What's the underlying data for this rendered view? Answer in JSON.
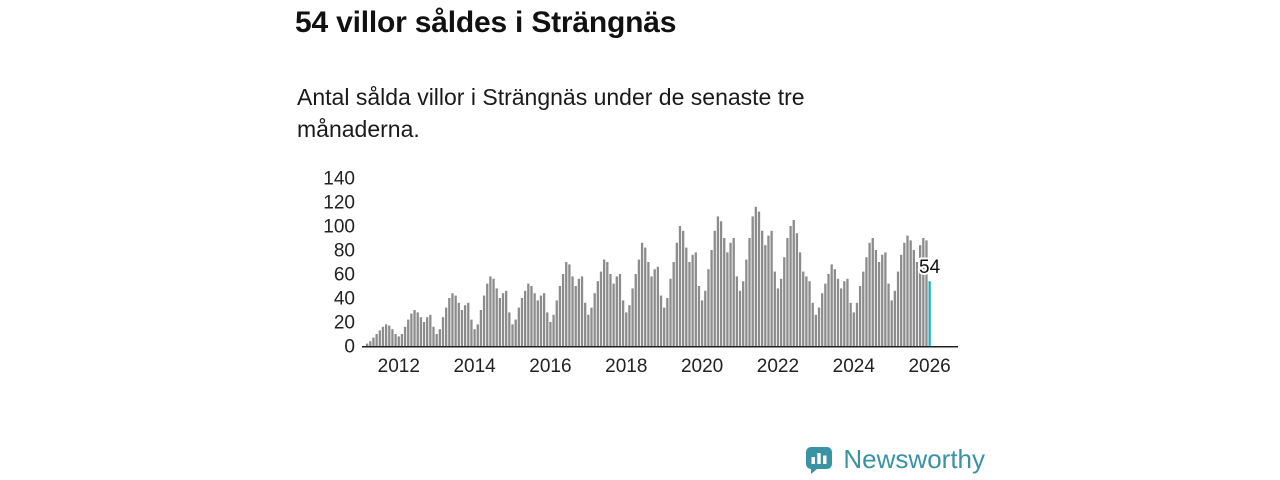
{
  "page": {
    "title": "54 villor såldes i Strängnäs",
    "subtitle": "Antal sålda villor i Strängnäs under de senaste tre månaderna."
  },
  "chart_data": {
    "type": "bar",
    "title": "54 villor såldes i Strängnäs",
    "subtitle": "Antal sålda villor i Strängnäs under de senaste tre månaderna.",
    "ylabel": "",
    "xlabel": "",
    "ylim": [
      0,
      140
    ],
    "y_ticks": [
      0,
      20,
      40,
      60,
      80,
      100,
      120,
      140
    ],
    "grid": false,
    "legend": false,
    "bar_color": "#8c8c8c",
    "highlight_color": "#1fb3bd",
    "highlight_label": "54",
    "x_ticks": [
      {
        "label": "2012",
        "index": 10
      },
      {
        "label": "2014",
        "index": 34
      },
      {
        "label": "2016",
        "index": 58
      },
      {
        "label": "2018",
        "index": 82
      },
      {
        "label": "2020",
        "index": 106
      },
      {
        "label": "2022",
        "index": 130
      },
      {
        "label": "2024",
        "index": 154
      },
      {
        "label": "2026",
        "index": 178
      }
    ],
    "values": [
      2,
      4,
      7,
      10,
      13,
      16,
      18,
      17,
      14,
      10,
      8,
      10,
      16,
      22,
      27,
      30,
      28,
      24,
      20,
      24,
      26,
      16,
      10,
      14,
      24,
      32,
      40,
      44,
      42,
      36,
      30,
      34,
      36,
      22,
      14,
      18,
      30,
      42,
      52,
      58,
      56,
      48,
      40,
      44,
      46,
      28,
      18,
      22,
      32,
      40,
      46,
      52,
      50,
      44,
      38,
      42,
      44,
      28,
      20,
      26,
      38,
      50,
      60,
      70,
      68,
      58,
      50,
      56,
      58,
      36,
      26,
      32,
      44,
      54,
      62,
      72,
      70,
      60,
      52,
      58,
      60,
      38,
      28,
      34,
      48,
      60,
      72,
      86,
      82,
      70,
      58,
      64,
      66,
      42,
      32,
      40,
      56,
      70,
      86,
      100,
      96,
      82,
      70,
      76,
      78,
      50,
      38,
      46,
      64,
      80,
      96,
      108,
      104,
      90,
      78,
      86,
      90,
      58,
      46,
      54,
      72,
      90,
      108,
      116,
      112,
      96,
      84,
      92,
      96,
      62,
      48,
      56,
      74,
      90,
      100,
      105,
      94,
      78,
      62,
      58,
      54,
      36,
      26,
      32,
      44,
      52,
      60,
      68,
      64,
      56,
      48,
      54,
      56,
      36,
      28,
      36,
      50,
      62,
      74,
      86,
      90,
      80,
      70,
      76,
      78,
      52,
      38,
      46,
      62,
      76,
      86,
      92,
      88,
      80,
      70,
      84,
      90,
      88,
      54
    ]
  },
  "branding": {
    "name": "Newsworthy",
    "color": "#3a93a3",
    "icon": "bar-chart-bubble-icon",
    "icon_bar_color": "#ffffff"
  }
}
